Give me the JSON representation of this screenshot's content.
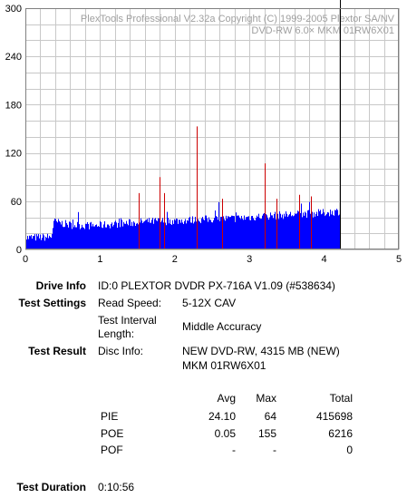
{
  "chart_data": {
    "type": "bar",
    "title_lines": [
      "PlexTools Professional V2.32a Copyright (C) 1999-2005 Plextor SA/NV",
      "DVD-RW   6.0×   MKM 01RW6X01"
    ],
    "xlim": [
      0,
      5
    ],
    "ylim": [
      0,
      300
    ],
    "x_ticks": [
      "0",
      "1",
      "2",
      "3",
      "4",
      "5"
    ],
    "y_ticks": [
      "0",
      "60",
      "120",
      "180",
      "240",
      "300"
    ],
    "grid": true,
    "end_marker_x": 4.21,
    "series": [
      {
        "color": "#0000ff",
        "x_start": 0,
        "x_end": 4.21,
        "baseline_profile": [
          [
            0.0,
            13
          ],
          [
            0.35,
            14
          ],
          [
            0.38,
            33
          ],
          [
            0.6,
            29
          ],
          [
            0.9,
            28
          ],
          [
            1.2,
            30
          ],
          [
            1.6,
            33
          ],
          [
            2.0,
            34
          ],
          [
            2.4,
            36
          ],
          [
            2.8,
            37
          ],
          [
            3.2,
            40
          ],
          [
            3.6,
            42
          ],
          [
            4.0,
            44
          ],
          [
            4.21,
            46
          ]
        ]
      },
      {
        "color": "#cc0000",
        "spikes": [
          [
            1.52,
            70
          ],
          [
            1.8,
            90
          ],
          [
            1.86,
            70
          ],
          [
            2.29,
            153
          ],
          [
            2.63,
            63
          ],
          [
            3.2,
            107
          ],
          [
            3.36,
            63
          ],
          [
            3.67,
            68
          ],
          [
            3.82,
            66
          ]
        ]
      }
    ]
  },
  "info": {
    "drive_info_label": "Drive Info",
    "drive_info_value": "ID:0 PLEXTOR DVDR PX-716A V1.09 (#538634)",
    "test_settings_label": "Test Settings",
    "read_speed_label": "Read Speed:",
    "read_speed_value": "5-12X CAV",
    "interval_label_1": "Test Interval",
    "interval_label_2": "Length:",
    "interval_value": "Middle Accuracy",
    "test_result_label": "Test Result",
    "disc_info_label": "Disc Info:",
    "disc_info_line1": "NEW DVD-RW, 4315 MB (NEW)",
    "disc_info_line2": "MKM 01RW6X01",
    "test_duration_label": "Test Duration",
    "test_duration_value": "0:10:56"
  },
  "results": {
    "headers": [
      "Avg",
      "Max",
      "Total"
    ],
    "rows": [
      {
        "name": "PIE",
        "avg": "24.10",
        "max": "64",
        "total": "415698"
      },
      {
        "name": "POE",
        "avg": "0.05",
        "max": "155",
        "total": "6216"
      },
      {
        "name": "POF",
        "avg": "-",
        "max": "-",
        "total": "0"
      }
    ]
  }
}
